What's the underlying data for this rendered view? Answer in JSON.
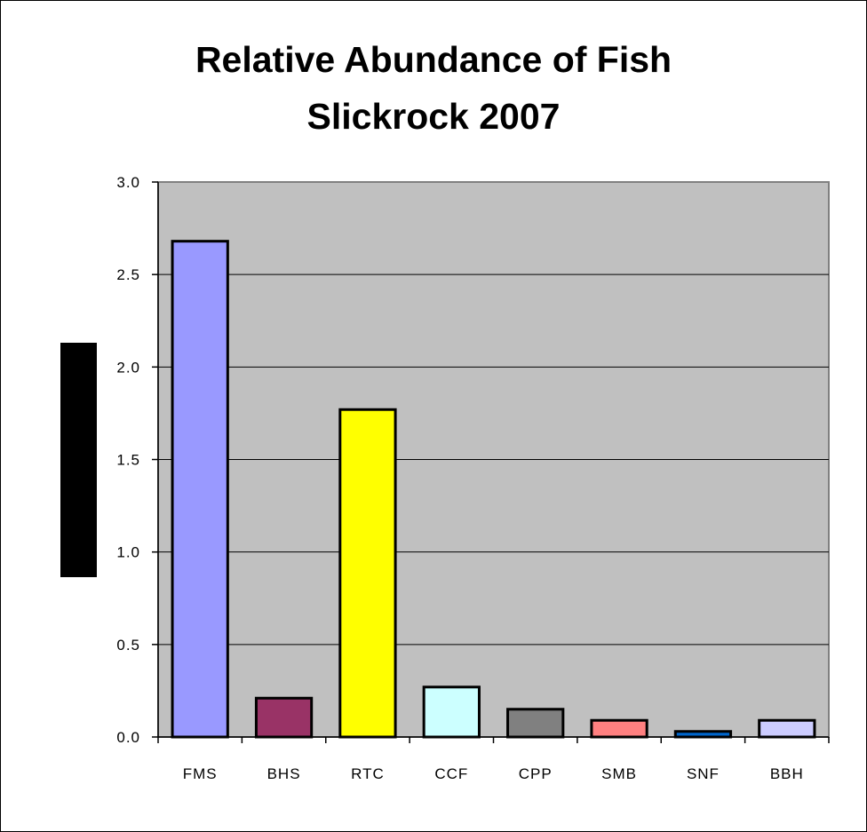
{
  "chart_data": {
    "type": "bar",
    "title_lines": [
      "Relative Abundance of Fish",
      "Slickrock 2007"
    ],
    "xlabel": "",
    "ylabel": "",
    "categories": [
      "FMS",
      "BHS",
      "RTC",
      "CCF",
      "CPP",
      "SMB",
      "SNF",
      "BBH"
    ],
    "values": [
      2.68,
      0.21,
      1.77,
      0.27,
      0.15,
      0.09,
      0.03,
      0.09
    ],
    "bar_colors": [
      "#9999ff",
      "#993366",
      "#ffff00",
      "#ccffff",
      "#808080",
      "#ff8080",
      "#0066cc",
      "#ccccff"
    ],
    "ylim": [
      0,
      3.0
    ],
    "yticks": [
      "0.0",
      "0.5",
      "1.0",
      "1.5",
      "2.0",
      "2.5",
      "3.0"
    ],
    "grid": true,
    "plot_background": "#c0c0c0",
    "legend": "none"
  }
}
